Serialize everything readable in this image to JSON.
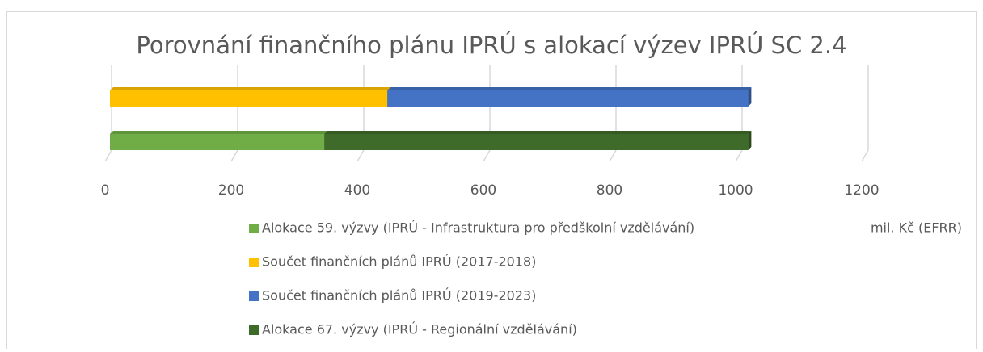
{
  "chart_data": {
    "type": "stacked-bar-horizontal",
    "title": "Porovnání finančního plánu IPRÚ s alokací výzev IPRÚ SC 2.4",
    "x_label": "mil. Kč (EFRR)",
    "categories": [
      null,
      null
    ],
    "series": [
      {
        "name": "Alokace 59. výzvy (IPRÚ - Infrastruktura pro předškolní vzdělávání)",
        "color": "#70ad47",
        "values": [
          340,
          0
        ]
      },
      {
        "name": "Součet finančních plánů IPRÚ (2017-2018)",
        "color": "#ffc000",
        "values": [
          0,
          440
        ]
      },
      {
        "name": "Součet finančních plánů IPRÚ (2019-2023)",
        "color": "#4472c4",
        "values": [
          0,
          572
        ]
      },
      {
        "name": "Alokace 67. výzvy (IPRÚ - Regionální vzdělávání)",
        "color": "#3f6b2a",
        "values": [
          672,
          0
        ]
      }
    ],
    "xlim": [
      0,
      1200
    ],
    "xticks": [
      0,
      200,
      400,
      600,
      800,
      1000,
      1200
    ],
    "grid": true
  }
}
